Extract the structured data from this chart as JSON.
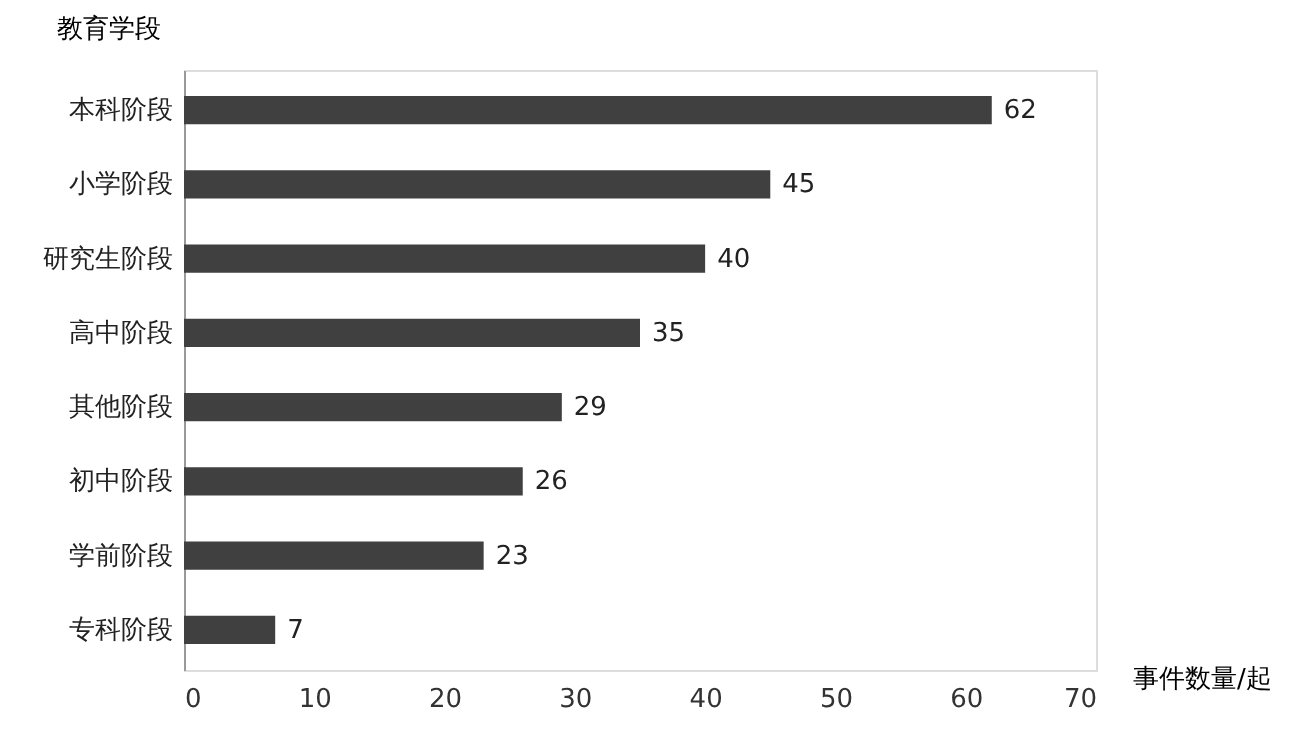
{
  "chart_data": {
    "type": "bar",
    "orientation": "horizontal",
    "ylabel": "教育学段",
    "xlabel": "事件数量/起",
    "categories": [
      "本科阶段",
      "小学阶段",
      "研究生阶段",
      "高中阶段",
      "其他阶段",
      "初中阶段",
      "学前阶段",
      "专科阶段"
    ],
    "values": [
      62,
      45,
      40,
      35,
      29,
      26,
      23,
      7
    ],
    "color": "#404040",
    "xlim": [
      0,
      70
    ],
    "xticks": [
      0,
      10,
      20,
      30,
      40,
      50,
      60,
      70
    ],
    "grid": false,
    "data_labels": true
  }
}
